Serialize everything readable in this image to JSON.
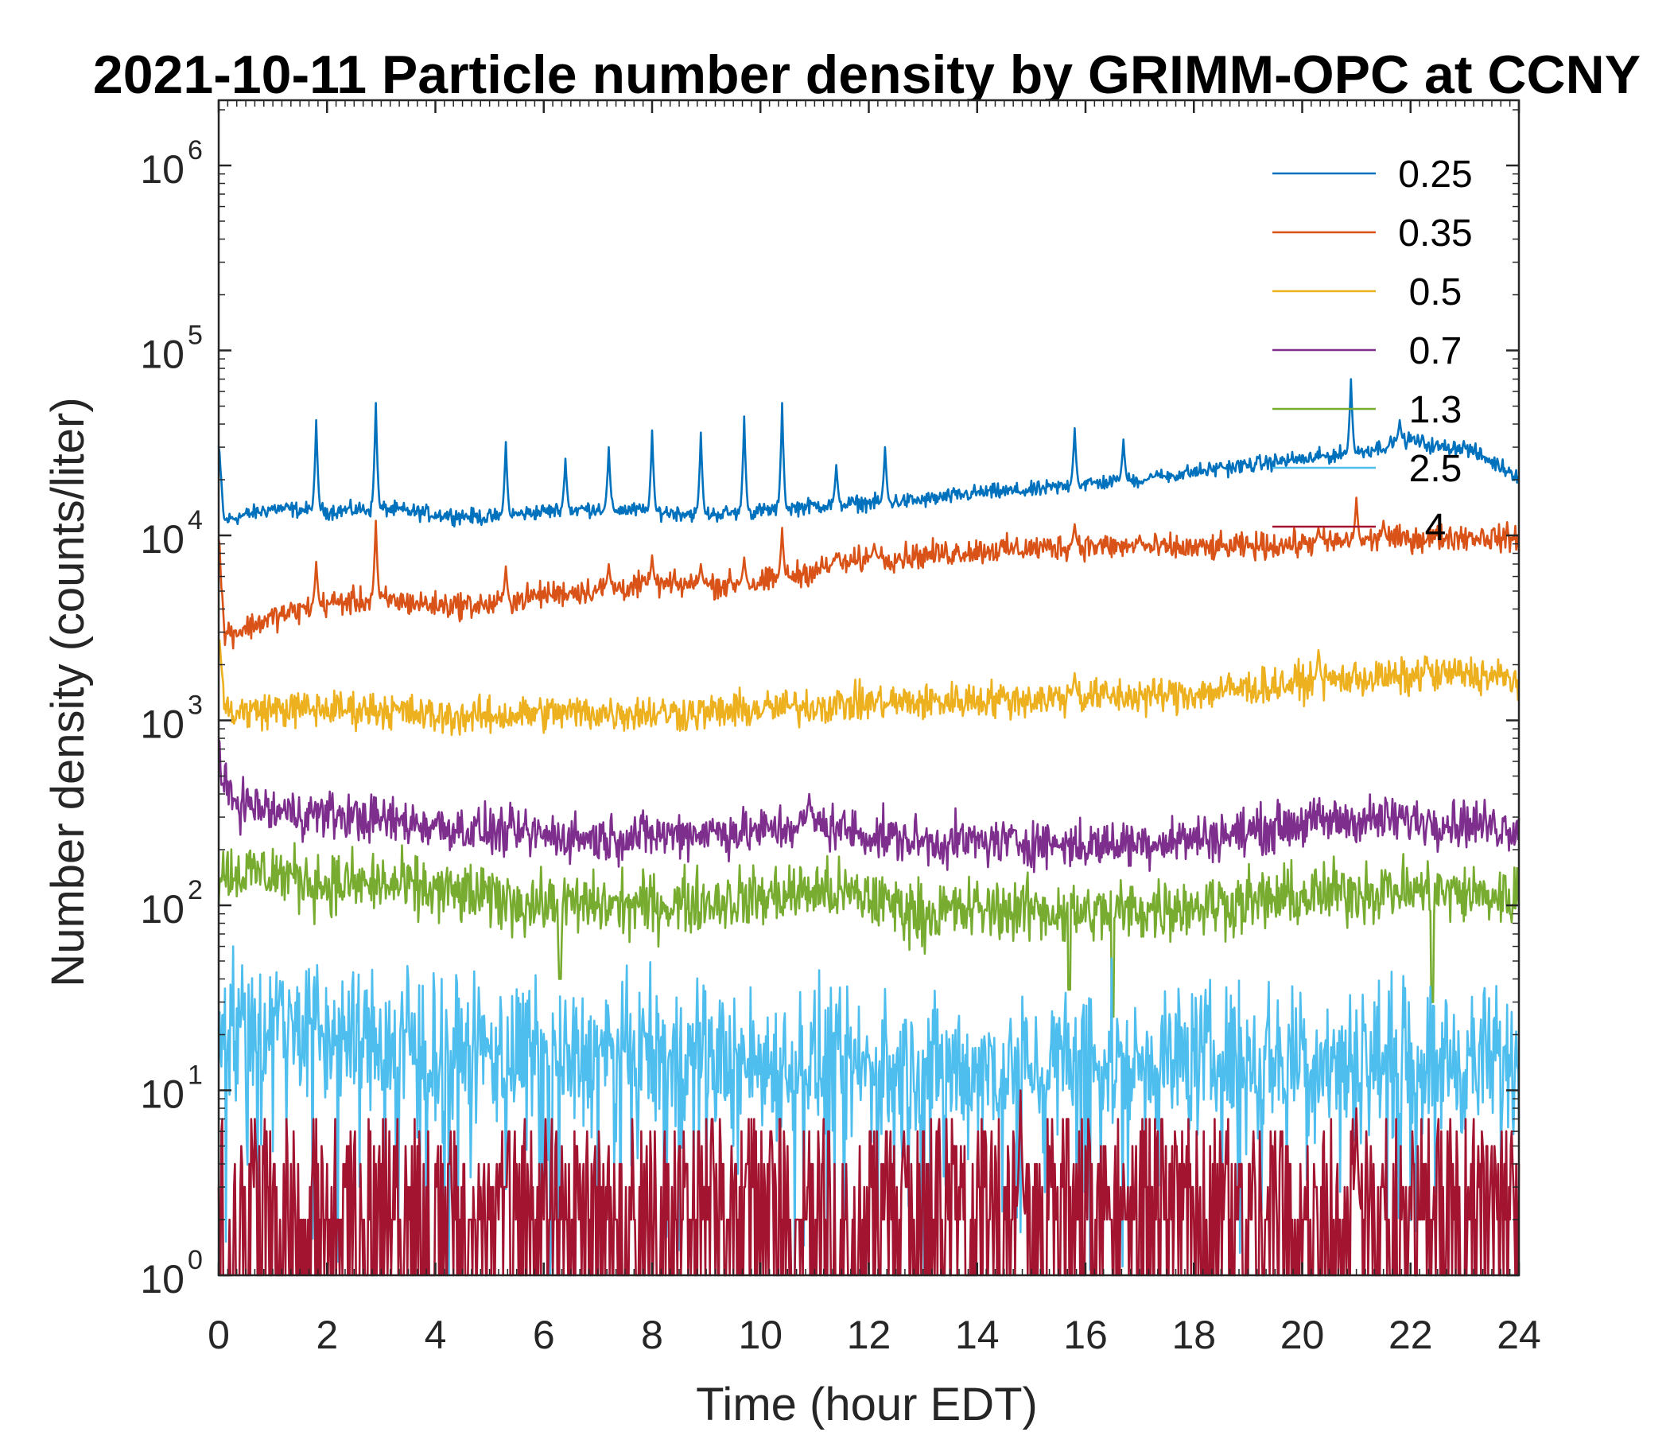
{
  "chart_data": {
    "type": "line",
    "title": "2021-10-11 Particle number density by GRIMM-OPC at CCNY",
    "xlabel": "Time (hour EDT)",
    "ylabel": "Number density (counts/liter)",
    "xlim": [
      0,
      24
    ],
    "ylim_log10": [
      0,
      6.3
    ],
    "yscale": "log",
    "x_ticks": [
      "0",
      "2",
      "4",
      "6",
      "8",
      "10",
      "12",
      "14",
      "16",
      "18",
      "20",
      "22",
      "24"
    ],
    "y_ticks": [
      {
        "base": "10",
        "exp": "0"
      },
      {
        "base": "10",
        "exp": "1"
      },
      {
        "base": "10",
        "exp": "2"
      },
      {
        "base": "10",
        "exp": "3"
      },
      {
        "base": "10",
        "exp": "4"
      },
      {
        "base": "10",
        "exp": "5"
      },
      {
        "base": "10",
        "exp": "6"
      }
    ],
    "legend_position": "top-right",
    "series": [
      {
        "name": "0.25",
        "color": "#0072BD",
        "x": [
          0,
          0.1,
          0.3,
          1,
          2,
          3,
          4,
          5,
          6,
          7,
          8,
          9,
          10,
          11,
          12,
          13,
          14,
          15,
          16,
          17,
          18,
          19,
          20,
          21,
          22,
          22.5,
          23,
          23.5,
          24
        ],
        "y": [
          30000,
          12000,
          12500,
          14000,
          13500,
          14000,
          13000,
          12500,
          13500,
          14000,
          13500,
          13000,
          13500,
          14500,
          15000,
          15500,
          17000,
          17500,
          19000,
          20000,
          22000,
          24000,
          26000,
          28000,
          33000,
          30000,
          30000,
          25000,
          21000
        ],
        "spikes": [
          [
            1.8,
            42000
          ],
          [
            2.9,
            52000
          ],
          [
            5.3,
            32000
          ],
          [
            6.4,
            26000
          ],
          [
            7.2,
            30000
          ],
          [
            8.0,
            37000
          ],
          [
            8.9,
            36000
          ],
          [
            9.7,
            44000
          ],
          [
            10.4,
            52000
          ],
          [
            11.4,
            24000
          ],
          [
            12.3,
            30000
          ],
          [
            15.8,
            38000
          ],
          [
            16.7,
            33000
          ],
          [
            17.3,
            21000
          ],
          [
            18.5,
            24000
          ],
          [
            20.1,
            25000
          ],
          [
            20.9,
            70000
          ],
          [
            21.8,
            42000
          ]
        ]
      },
      {
        "name": "0.35",
        "color": "#D95319",
        "x": [
          0,
          0.1,
          0.3,
          1,
          2,
          3,
          4,
          5,
          6,
          7,
          8,
          9,
          10,
          11,
          12,
          13,
          14,
          15,
          16,
          17,
          18,
          19,
          20,
          21,
          22,
          23,
          24
        ],
        "y": [
          10000,
          3000,
          3000,
          3600,
          4300,
          4500,
          4200,
          4200,
          4800,
          5100,
          5400,
          5400,
          5500,
          6500,
          7500,
          7800,
          8300,
          8500,
          8800,
          8600,
          8500,
          8700,
          9000,
          9300,
          9600,
          9900,
          9600
        ],
        "spikes": [
          [
            1.8,
            7200
          ],
          [
            2.9,
            12000
          ],
          [
            5.3,
            6800
          ],
          [
            7.2,
            7000
          ],
          [
            8.0,
            7800
          ],
          [
            8.9,
            7000
          ],
          [
            9.7,
            7600
          ],
          [
            10.4,
            11000
          ],
          [
            11.4,
            8000
          ],
          [
            12.1,
            9000
          ],
          [
            15.8,
            11500
          ],
          [
            17.0,
            10000
          ],
          [
            20.3,
            11000
          ],
          [
            21.0,
            16000
          ],
          [
            21.5,
            12000
          ]
        ]
      },
      {
        "name": "0.5",
        "color": "#EDB120",
        "x": [
          0,
          0.1,
          0.3,
          1,
          2,
          3,
          4,
          5,
          6,
          7,
          8,
          9,
          10,
          11,
          12,
          13,
          14,
          15,
          16,
          17,
          18,
          19,
          20,
          21,
          22,
          23,
          24
        ],
        "y": [
          3000,
          1200,
          1100,
          1150,
          1150,
          1150,
          1050,
          1050,
          1100,
          1100,
          1100,
          1100,
          1150,
          1200,
          1250,
          1250,
          1300,
          1300,
          1350,
          1350,
          1400,
          1500,
          1600,
          1700,
          1700,
          1800,
          1650
        ],
        "spikes": [
          [
            15.8,
            1800
          ],
          [
            20.3,
            2400
          ],
          [
            22.3,
            2200
          ]
        ]
      },
      {
        "name": "0.7",
        "color": "#7E2F8E",
        "x": [
          0,
          0.1,
          0.4,
          1,
          2,
          3,
          4,
          5,
          6,
          7,
          8,
          9,
          10,
          11,
          12,
          13,
          14,
          15,
          16,
          17,
          18,
          19,
          20,
          21,
          22,
          23,
          24
        ],
        "y": [
          600,
          420,
          360,
          320,
          310,
          290,
          270,
          250,
          240,
          230,
          240,
          250,
          250,
          280,
          240,
          220,
          220,
          220,
          210,
          220,
          230,
          250,
          280,
          290,
          290,
          280,
          260
        ],
        "spikes": [
          [
            10.9,
            400
          ]
        ]
      },
      {
        "name": "1.3",
        "color": "#77AC30",
        "x": [
          0,
          1,
          2,
          3,
          4,
          5,
          6,
          7,
          8,
          9,
          10,
          11,
          12,
          13,
          14,
          15,
          16,
          17,
          18,
          19,
          20,
          21,
          22,
          23,
          24
        ],
        "y": [
          150,
          150,
          130,
          130,
          120,
          110,
          100,
          100,
          100,
          105,
          110,
          120,
          110,
          90,
          95,
          95,
          90,
          95,
          100,
          105,
          110,
          120,
          120,
          115,
          110
        ],
        "spikes": [
          [
            6.3,
            40
          ],
          [
            15.7,
            35
          ],
          [
            16.5,
            25
          ],
          [
            22.4,
            30
          ]
        ]
      },
      {
        "name": "2.5",
        "color": "#4DBEEE",
        "x": [
          0,
          1,
          2,
          3,
          4,
          5,
          6,
          7,
          8,
          9,
          10,
          11,
          12,
          13,
          14,
          15,
          16,
          17,
          18,
          19,
          20,
          21,
          22,
          23,
          24
        ],
        "y": [
          22,
          24,
          20,
          18,
          17,
          16,
          15,
          15,
          15,
          15,
          14,
          14,
          13,
          13,
          13,
          14,
          14,
          14,
          15,
          15,
          15,
          15,
          15,
          14,
          14
        ],
        "spikes": []
      },
      {
        "name": "4",
        "color": "#A2142F",
        "x": [
          0,
          4,
          8,
          12,
          16,
          20,
          24
        ],
        "y": [
          2,
          2.2,
          2,
          2,
          2.2,
          2.3,
          2.2
        ],
        "spikes": [
          [
            14.8,
            10
          ],
          [
            21.0,
            8
          ]
        ]
      }
    ]
  }
}
